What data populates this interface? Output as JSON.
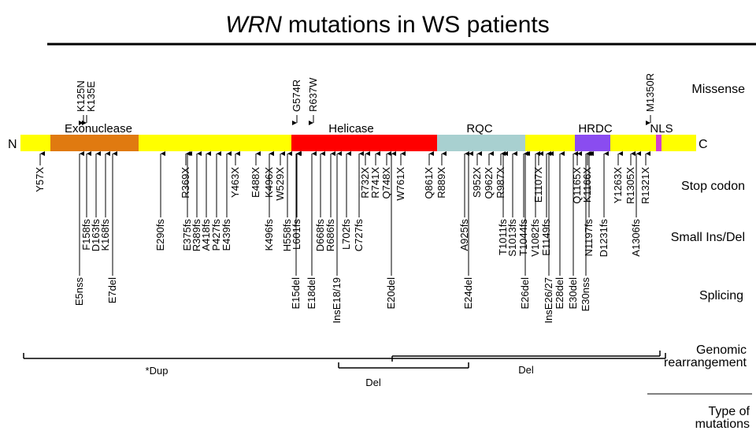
{
  "title": {
    "gene": "WRN",
    "rest": "mutations in WS patients"
  },
  "protein": {
    "n_label": "N",
    "c_label": "C",
    "domains": [
      {
        "name": "",
        "color": "#ffff00"
      },
      {
        "name": "Exonuclease",
        "color": "#e07a10"
      },
      {
        "name": "",
        "color": "#ffff00"
      },
      {
        "name": "Helicase",
        "color": "#ff0000"
      },
      {
        "name": "RQC",
        "color": "#a8d0d0"
      },
      {
        "name": "",
        "color": "#ffff00"
      },
      {
        "name": "HRDC",
        "color": "#8a4cf0"
      },
      {
        "name": "",
        "color": "#ffff00"
      },
      {
        "name": "NLS",
        "color": "#d040d0"
      },
      {
        "name": "",
        "color": "#ffff00"
      }
    ]
  },
  "categories": [
    "Missense",
    "Stop codon",
    "Small Ins/Del",
    "Splicing",
    "Genomic rearrangement",
    "Type of mutations"
  ],
  "missense": [
    "K125N",
    "K135E",
    "G574R",
    "R637W",
    "M1350R"
  ],
  "stop_codon": [
    "Y57X",
    "R369X",
    "Y463X",
    "E488X",
    "K496X",
    "W529X",
    "R732X",
    "R741X",
    "Q748X",
    "W761X",
    "Q861X",
    "R889X",
    "S952X",
    "Q962X",
    "R987X",
    "E1107X",
    "Q1165X",
    "K1166X",
    "Y1263X",
    "R1305X",
    "R1321X"
  ],
  "small_insdel": [
    "F158fs",
    "D163fs",
    "K168fs",
    "E290fs",
    "E375fs",
    "R389fs",
    "A418fs",
    "P427fs",
    "E439fs",
    "K496fs",
    "H558fs",
    "L601fs",
    "D668fs",
    "R686fs",
    "L702fs",
    "C727fs",
    "A925fs",
    "T1011fs",
    "S1013fs",
    "T1044fs",
    "V1082fs",
    "E1149fs",
    "N1197fs",
    "D1231fs",
    "A1306fs"
  ],
  "splicing": [
    "E5nss",
    "E7del",
    "E15del",
    "E18del",
    "InsE18/19",
    "E20del",
    "E24del",
    "E26del",
    "InsE26/27",
    "E28del",
    "E30del",
    "E30nss"
  ],
  "rearrangement": [
    "*Dup",
    "Del",
    "Del"
  ],
  "colors": {
    "line": "#000000"
  }
}
